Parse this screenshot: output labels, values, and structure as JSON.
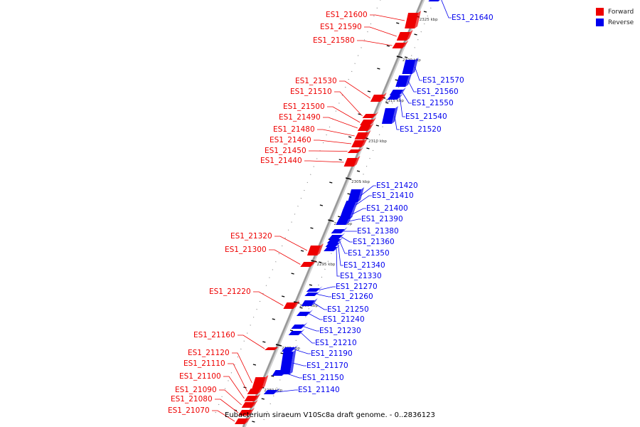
{
  "legend": [
    {
      "label": "Forward",
      "color": "#ee0000"
    },
    {
      "label": "Reverse",
      "color": "#0000ee"
    }
  ],
  "caption": "Eubacterium siraeum V10Sc8a draft genome. - 0..2836123",
  "colors": {
    "forward": "#ee0000",
    "reverse": "#0000ee",
    "backbone": "#999999"
  },
  "ticks": [
    "2280 kbp",
    "2285 kbp",
    "2290 kbp",
    "2295 kbp",
    "2300 kbp",
    "2305 kbp",
    "2310 kbp",
    "2315 kbp",
    "2320 kbp",
    "2325 kbp"
  ],
  "forward_genes": [
    "ES1_21600",
    "ES1_21590",
    "ES1_21580",
    "ES1_21530",
    "ES1_21510",
    "ES1_21500",
    "ES1_21490",
    "ES1_21480",
    "ES1_21460",
    "ES1_21450",
    "ES1_21440",
    "ES1_21320",
    "ES1_21300",
    "ES1_21220",
    "ES1_21160",
    "ES1_21120",
    "ES1_21110",
    "ES1_21100",
    "ES1_21090",
    "ES1_21080",
    "ES1_21070"
  ],
  "reverse_genes": [
    "ES1_21640",
    "ES1_21570",
    "ES1_21560",
    "ES1_21550",
    "ES1_21540",
    "ES1_21520",
    "ES1_21420",
    "ES1_21410",
    "ES1_21400",
    "ES1_21390",
    "ES1_21380",
    "ES1_21360",
    "ES1_21350",
    "ES1_21340",
    "ES1_21330",
    "ES1_21270",
    "ES1_21260",
    "ES1_21250",
    "ES1_21240",
    "ES1_21230",
    "ES1_21210",
    "ES1_21190",
    "ES1_21170",
    "ES1_21150",
    "ES1_21140"
  ]
}
